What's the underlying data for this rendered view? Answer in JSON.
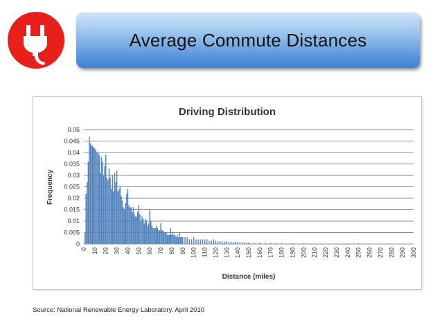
{
  "slide": {
    "title": "Average Commute Distances",
    "logo_icon": "power-plug-icon",
    "logo_color": "#e8201c",
    "source": "Source:  National Renewable Energy Laboratory.  April 2010"
  },
  "chart_data": {
    "type": "bar",
    "title": "Driving Distribution",
    "xlabel": "Distance (miles)",
    "ylabel": "Frequency",
    "xlim": [
      0,
      300
    ],
    "ylim": [
      0,
      0.05
    ],
    "x_ticks": [
      0,
      10,
      20,
      30,
      40,
      50,
      60,
      70,
      80,
      90,
      100,
      110,
      120,
      130,
      140,
      150,
      160,
      170,
      180,
      190,
      200,
      210,
      220,
      230,
      240,
      250,
      260,
      270,
      280,
      290,
      300
    ],
    "y_ticks": [
      "0",
      "0.005",
      "0.01",
      "0.015",
      "0.02",
      "0.025",
      "0.03",
      "0.035",
      "0.04",
      "0.045",
      "0.05"
    ],
    "grid": true,
    "bar_color": "#4f81bd",
    "x": [
      1,
      2,
      3,
      4,
      5,
      6,
      7,
      8,
      9,
      10,
      11,
      12,
      13,
      14,
      15,
      16,
      17,
      18,
      19,
      20,
      21,
      22,
      23,
      24,
      25,
      26,
      27,
      28,
      29,
      30,
      31,
      32,
      33,
      34,
      35,
      36,
      37,
      38,
      39,
      40,
      41,
      42,
      43,
      44,
      45,
      46,
      47,
      48,
      49,
      50,
      51,
      52,
      53,
      54,
      55,
      56,
      57,
      58,
      59,
      60,
      61,
      62,
      63,
      64,
      65,
      66,
      67,
      68,
      69,
      70,
      71,
      72,
      73,
      74,
      75,
      76,
      77,
      78,
      79,
      80,
      81,
      82,
      83,
      84,
      85,
      86,
      87,
      88,
      89,
      90,
      92,
      94,
      96,
      98,
      100,
      102,
      104,
      106,
      108,
      110,
      112,
      114,
      116,
      118,
      120,
      122,
      124,
      126,
      128,
      130,
      132,
      134,
      136,
      138,
      140,
      142,
      144,
      146,
      148,
      150,
      155,
      160,
      165,
      170,
      175,
      180,
      190,
      200,
      210,
      220,
      230,
      240,
      250,
      260
    ],
    "values": [
      0.005,
      0.022,
      0.027,
      0.036,
      0.047,
      0.044,
      0.043,
      0.043,
      0.042,
      0.042,
      0.041,
      0.04,
      0.04,
      0.039,
      0.031,
      0.038,
      0.036,
      0.03,
      0.034,
      0.039,
      0.029,
      0.028,
      0.033,
      0.029,
      0.024,
      0.03,
      0.023,
      0.031,
      0.027,
      0.032,
      0.023,
      0.024,
      0.025,
      0.021,
      0.019,
      0.016,
      0.015,
      0.018,
      0.022,
      0.024,
      0.017,
      0.016,
      0.016,
      0.014,
      0.016,
      0.013,
      0.012,
      0.012,
      0.014,
      0.017,
      0.013,
      0.01,
      0.012,
      0.011,
      0.009,
      0.011,
      0.01,
      0.008,
      0.009,
      0.015,
      0.01,
      0.008,
      0.007,
      0.007,
      0.007,
      0.008,
      0.007,
      0.006,
      0.006,
      0.009,
      0.006,
      0.006,
      0.005,
      0.005,
      0.005,
      0.004,
      0.004,
      0.004,
      0.007,
      0.004,
      0.005,
      0.004,
      0.004,
      0.003,
      0.004,
      0.003,
      0.005,
      0.003,
      0.003,
      0.003,
      0.003,
      0.003,
      0.002,
      0.002,
      0.003,
      0.002,
      0.002,
      0.002,
      0.002,
      0.002,
      0.002,
      0.0015,
      0.0015,
      0.002,
      0.0015,
      0.0012,
      0.0012,
      0.001,
      0.001,
      0.0012,
      0.001,
      0.001,
      0.0008,
      0.001,
      0.0008,
      0.0008,
      0.0007,
      0.0006,
      0.0006,
      0.0006,
      0.0005,
      0.0005,
      0.0004,
      0.0004,
      0.0004,
      0.0003,
      0.0003,
      0.0003,
      0.0002,
      0.0002,
      0.0002,
      0.0002,
      0.0003,
      0.0002
    ]
  }
}
